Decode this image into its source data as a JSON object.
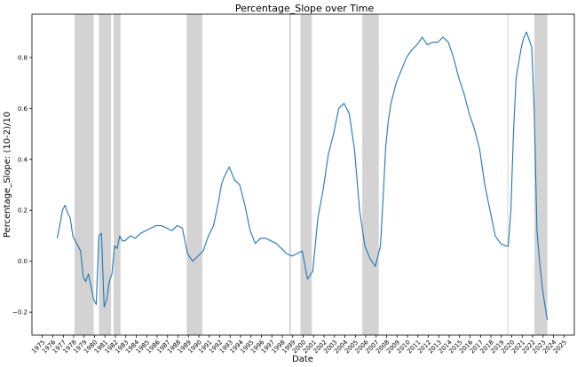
{
  "chart_data": {
    "type": "line",
    "title": "Percentage_Slope over Time",
    "xlabel": "Date",
    "ylabel": "Percentage_Slope: (10-2)/10",
    "xlim": [
      "1974-01-01",
      "2025-12-31"
    ],
    "ylim": [
      -0.29,
      0.97
    ],
    "grid": false,
    "line_color": "#1f77b4",
    "shade_color": "#d3d3d3",
    "x_ticks": [
      "1975",
      "1976",
      "1977",
      "1978",
      "1979",
      "1980",
      "1981",
      "1982",
      "1983",
      "1984",
      "1985",
      "1986",
      "1987",
      "1988",
      "1989",
      "1990",
      "1991",
      "1992",
      "1993",
      "1994",
      "1995",
      "1996",
      "1997",
      "1998",
      "1999",
      "2000",
      "2001",
      "2002",
      "2003",
      "2004",
      "2005",
      "2006",
      "2007",
      "2008",
      "2009",
      "2010",
      "2011",
      "2012",
      "2013",
      "2014",
      "2015",
      "2016",
      "2017",
      "2018",
      "2019",
      "2020",
      "2021",
      "2022",
      "2023",
      "2024",
      "2025"
    ],
    "y_ticks": [
      -0.2,
      0.0,
      0.2,
      0.4,
      0.6,
      0.8
    ],
    "y_tick_labels": [
      "−0.2",
      "0.0",
      "0.2",
      "0.4",
      "0.6",
      "0.8"
    ],
    "shaded_periods": [
      [
        "1978-02-01",
        "1979-12-01"
      ],
      [
        "1980-06-01",
        "1981-08-01"
      ],
      [
        "1981-11-01",
        "1982-07-01"
      ],
      [
        "1988-11-01",
        "1990-05-01"
      ],
      [
        "1998-09-01",
        "1998-11-01"
      ],
      [
        "1999-10-01",
        "2000-11-01"
      ],
      [
        "2005-09-01",
        "2007-04-01"
      ],
      [
        "2019-08-01",
        "2019-09-01"
      ],
      [
        "2022-03-01",
        "2023-06-01"
      ]
    ],
    "series": [
      {
        "x": [
          "1976-06-01",
          "1976-09-01",
          "1976-12-01",
          "1977-03-01",
          "1977-06-01",
          "1977-09-01",
          "1977-12-01",
          "1978-03-01",
          "1978-06-01",
          "1978-09-01",
          "1978-12-01",
          "1979-03-01",
          "1979-06-01",
          "1979-09-01",
          "1979-12-01",
          "1980-03-01",
          "1980-06-01",
          "1980-09-01",
          "1980-12-01",
          "1981-03-01",
          "1981-06-01",
          "1981-09-01",
          "1981-12-01",
          "1982-03-01",
          "1982-06-01",
          "1982-09-01",
          "1982-12-01",
          "1983-06-01",
          "1983-12-01",
          "1984-06-01",
          "1984-12-01",
          "1985-06-01",
          "1985-12-01",
          "1986-06-01",
          "1986-12-01",
          "1987-06-01",
          "1987-12-01",
          "1988-06-01",
          "1988-12-01",
          "1989-06-01",
          "1989-12-01",
          "1990-06-01",
          "1990-12-01",
          "1991-06-01",
          "1991-12-01",
          "1992-03-01",
          "1992-06-01",
          "1992-09-01",
          "1992-12-01",
          "1993-06-01",
          "1993-12-01",
          "1994-06-01",
          "1994-12-01",
          "1995-06-01",
          "1995-12-01",
          "1996-06-01",
          "1996-12-01",
          "1997-06-01",
          "1997-12-01",
          "1998-06-01",
          "1998-12-01",
          "1999-06-01",
          "1999-12-01",
          "2000-06-01",
          "2000-12-01",
          "2001-06-01",
          "2001-12-01",
          "2002-06-01",
          "2002-12-01",
          "2003-06-01",
          "2003-12-01",
          "2004-06-01",
          "2004-12-01",
          "2005-06-01",
          "2005-12-01",
          "2006-06-01",
          "2006-12-01",
          "2007-06-01",
          "2007-09-01",
          "2007-12-01",
          "2008-03-01",
          "2008-06-01",
          "2008-12-01",
          "2009-06-01",
          "2009-12-01",
          "2010-06-01",
          "2010-12-01",
          "2011-06-01",
          "2011-12-01",
          "2012-06-01",
          "2012-12-01",
          "2013-06-01",
          "2013-12-01",
          "2014-06-01",
          "2014-12-01",
          "2015-06-01",
          "2015-12-01",
          "2016-06-01",
          "2016-12-01",
          "2017-06-01",
          "2017-12-01",
          "2018-06-01",
          "2018-12-01",
          "2019-06-01",
          "2019-09-01",
          "2019-12-01",
          "2020-03-01",
          "2020-06-01",
          "2020-12-01",
          "2021-03-01",
          "2021-06-01",
          "2021-12-01",
          "2022-03-01",
          "2022-06-01",
          "2022-09-01",
          "2022-12-01",
          "2023-03-01",
          "2023-06-01"
        ],
        "y": [
          0.09,
          0.14,
          0.2,
          0.22,
          0.19,
          0.17,
          0.1,
          0.08,
          0.06,
          0.04,
          -0.06,
          -0.08,
          -0.05,
          -0.1,
          -0.15,
          -0.17,
          0.1,
          0.11,
          -0.18,
          -0.15,
          -0.08,
          -0.05,
          0.06,
          0.05,
          0.1,
          0.08,
          0.08,
          0.1,
          0.09,
          0.11,
          0.12,
          0.13,
          0.14,
          0.14,
          0.13,
          0.12,
          0.14,
          0.13,
          0.03,
          0.0,
          0.02,
          0.04,
          0.1,
          0.14,
          0.24,
          0.3,
          0.33,
          0.35,
          0.37,
          0.32,
          0.3,
          0.22,
          0.12,
          0.07,
          0.09,
          0.09,
          0.08,
          0.07,
          0.05,
          0.03,
          0.02,
          0.03,
          0.04,
          -0.07,
          -0.04,
          0.17,
          0.28,
          0.42,
          0.5,
          0.6,
          0.62,
          0.58,
          0.44,
          0.2,
          0.06,
          0.01,
          -0.02,
          0.06,
          0.25,
          0.45,
          0.55,
          0.62,
          0.7,
          0.75,
          0.8,
          0.83,
          0.85,
          0.88,
          0.85,
          0.86,
          0.86,
          0.88,
          0.86,
          0.8,
          0.72,
          0.66,
          0.58,
          0.52,
          0.44,
          0.3,
          0.2,
          0.1,
          0.07,
          0.06,
          0.06,
          0.2,
          0.5,
          0.72,
          0.84,
          0.88,
          0.9,
          0.84,
          0.58,
          0.12,
          0.0,
          -0.1,
          -0.17,
          -0.23
        ]
      }
    ]
  }
}
